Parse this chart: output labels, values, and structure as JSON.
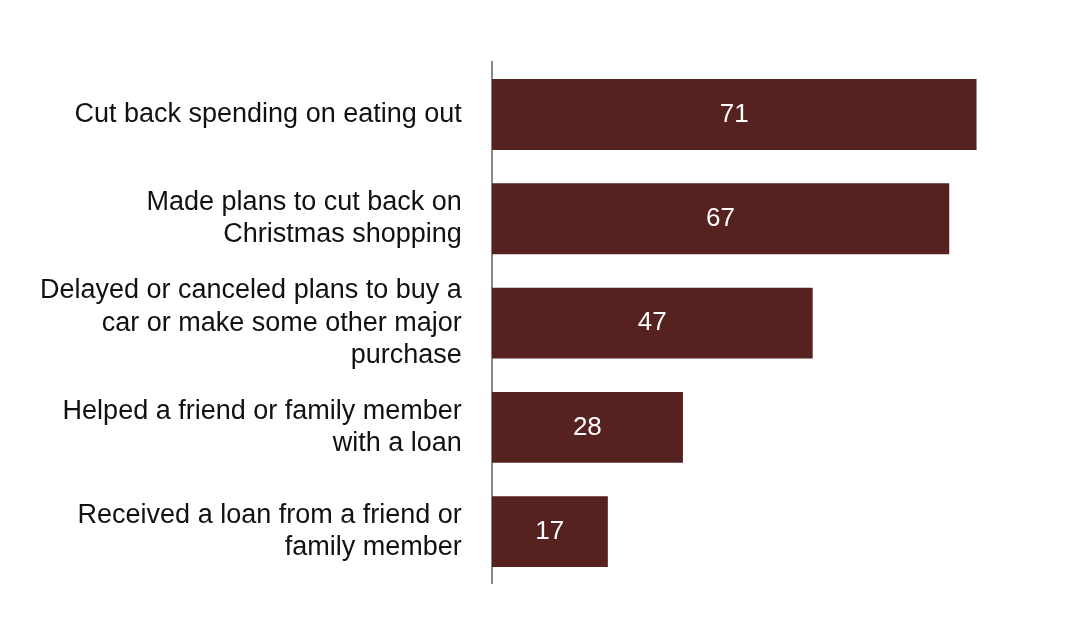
{
  "chart_data": {
    "type": "bar",
    "orientation": "horizontal",
    "categories": [
      "Cut back spending on eating out",
      "Made plans to cut back on Christmas shopping",
      "Delayed or canceled plans to buy a car or make some other major purchase",
      "Helped a friend or family member with a loan",
      "Received a loan from a friend or family member"
    ],
    "values": [
      71,
      67,
      47,
      28,
      17
    ],
    "color": "#56221f",
    "data_labels": true,
    "tick_labels": "y"
  }
}
